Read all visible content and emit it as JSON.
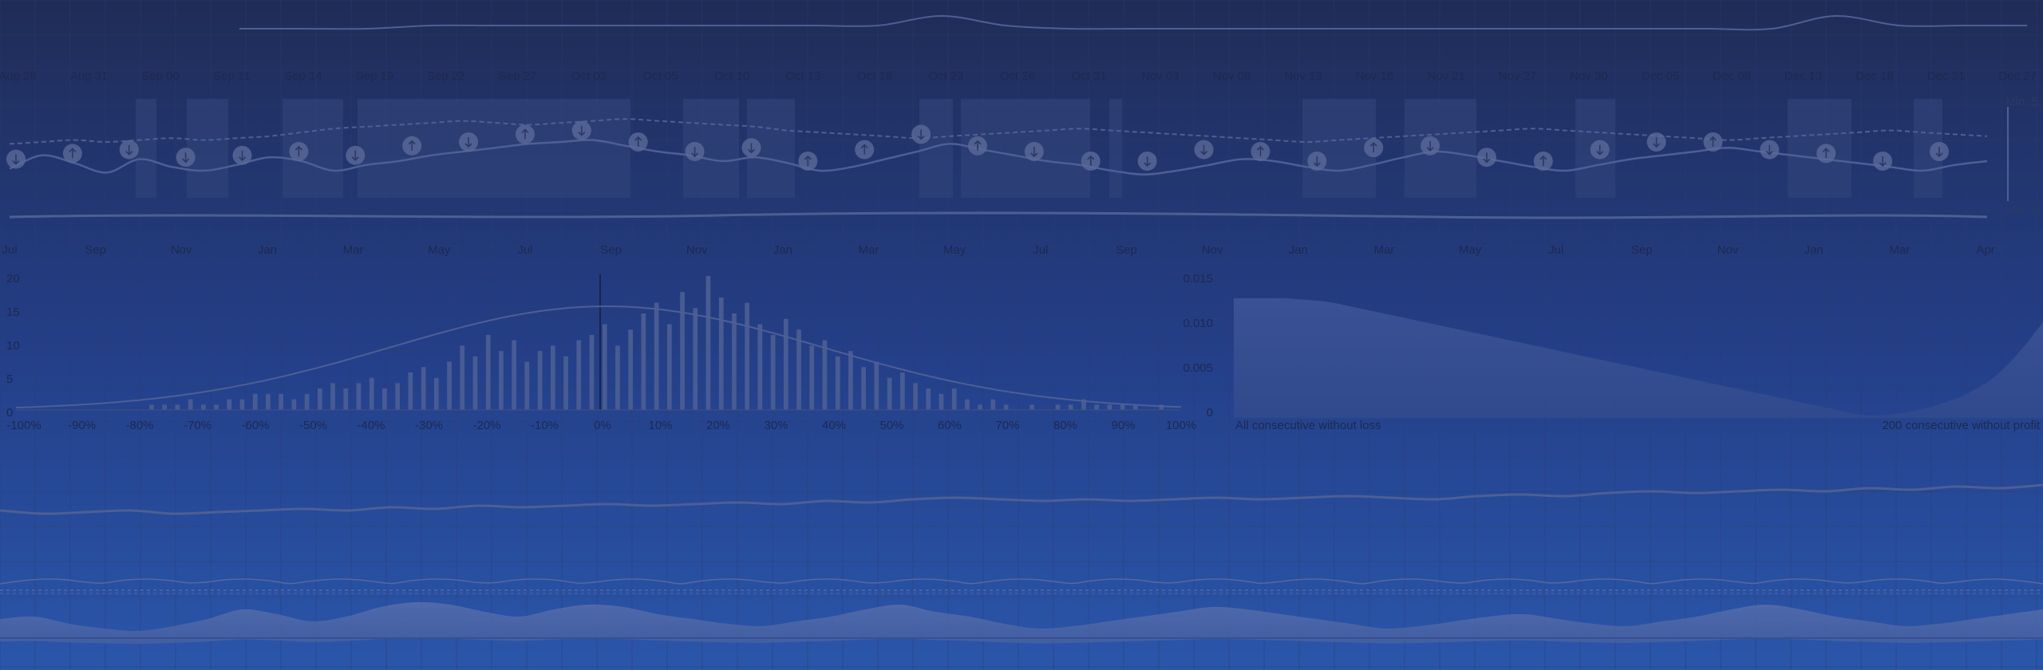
{
  "colors": {
    "bg_top": "#202c57",
    "bg_bottom": "#2a56aa",
    "line": "#4d5f94",
    "fill": "#3c5596",
    "band": "#31437a",
    "marker": "#5a6a99",
    "label": "#1c2950"
  },
  "chart_data": [
    {
      "type": "line",
      "id": "navigator",
      "x": [
        "Aug 28",
        "Aug 31",
        "Sep 06",
        "Sep 11",
        "Sep 14",
        "Sep 19",
        "Sep 22",
        "Sep 27",
        "Oct 02",
        "Oct 05",
        "Oct 10",
        "Oct 13",
        "Oct 18",
        "Oct 23",
        "Oct 26",
        "Oct 31",
        "Nov 03",
        "Nov 08",
        "Nov 13",
        "Nov 16",
        "Nov 21",
        "Nov 27",
        "Nov 30",
        "Dec 05",
        "Dec 08",
        "Dec 13",
        "Dec 18",
        "Dec 21",
        "Dec 27"
      ],
      "x_tick_labels": [
        "Aug 28",
        "Aug 31",
        "Sep 06",
        "Sep 11",
        "Sep 14",
        "Sep 19",
        "Sep 22",
        "Sep 27",
        "Oct 02",
        "Oct 05",
        "Oct 10",
        "Oct 13",
        "Oct 18",
        "Oct 23",
        "Oct 26",
        "Oct 31",
        "Nov 03",
        "Nov 08",
        "Nov 13",
        "Nov 16",
        "Nov 21",
        "Nov 27",
        "Nov 30",
        "Dec 05",
        "Dec 08",
        "Dec 13",
        "Dec 18",
        "Dec 21",
        "Dec 27"
      ],
      "values": [
        0,
        0,
        0,
        1,
        1,
        1,
        1,
        1,
        1,
        1,
        1,
        4,
        1,
        0,
        0,
        0,
        0,
        0,
        0,
        0,
        0,
        0,
        0,
        0,
        0,
        4,
        1,
        1,
        1
      ]
    },
    {
      "type": "line",
      "id": "flags-timeline",
      "x_tick_labels": [
        "Jul",
        "Sep",
        "Nov",
        "Jan",
        "Mar",
        "May",
        "Jul",
        "Sep",
        "Nov",
        "Jan",
        "Mar",
        "May",
        "Jul",
        "Sep",
        "Nov",
        "Jan",
        "Mar",
        "May",
        "Jul",
        "Sep",
        "Nov",
        "Jan",
        "Mar",
        "Apr"
      ],
      "y_tick_labels": [
        "Min. 5",
        "Min. 5"
      ],
      "series_main": [
        32,
        46,
        38,
        28,
        42,
        34,
        30,
        36,
        44,
        40,
        30,
        36,
        40,
        46,
        50,
        54,
        58,
        60,
        62,
        56,
        50,
        46,
        40,
        44,
        38,
        30,
        34,
        42,
        50,
        58,
        52,
        46,
        40,
        36,
        30,
        26,
        30,
        36,
        42,
        40,
        34,
        30,
        36,
        44,
        50,
        46,
        40,
        34,
        30,
        36,
        42,
        46,
        50,
        54,
        50,
        46,
        42,
        38,
        34,
        30,
        36,
        40
      ],
      "series_dashed": [
        58,
        60,
        62,
        60,
        62,
        64,
        62,
        64,
        66,
        70,
        74,
        76,
        78,
        80,
        82,
        80,
        78,
        80,
        82,
        84,
        82,
        80,
        78,
        76,
        72,
        70,
        68,
        66,
        64,
        66,
        68,
        70,
        72,
        74,
        72,
        70,
        68,
        66,
        64,
        62,
        60,
        62,
        64,
        66,
        68,
        70,
        72,
        74,
        72,
        70,
        68,
        66,
        64,
        62,
        64,
        66,
        68,
        70,
        72,
        70,
        68,
        66
      ],
      "flags": [
        "down",
        "up",
        "down",
        "down",
        "down",
        "up",
        "down",
        "up",
        "down",
        "up",
        "down",
        "up",
        "down",
        "down",
        "up",
        "up",
        "down",
        "up",
        "down",
        "up",
        "down",
        "down",
        "up",
        "down",
        "up",
        "down",
        "down",
        "up",
        "down",
        "down",
        "up",
        "down",
        "up",
        "down",
        "down"
      ]
    },
    {
      "type": "bar",
      "id": "distribution-histogram",
      "x_tick_labels": [
        "-100%",
        "-95%",
        "-90%",
        "-85%",
        "-80%",
        "-75%",
        "-70%",
        "-65%",
        "-60%",
        "-55%",
        "-50%",
        "-45%",
        "-40%",
        "-35%",
        "-30%",
        "-25%",
        "-20%",
        "-15%",
        "-10%",
        "-5%",
        "0%",
        "5%",
        "10%",
        "15%",
        "20%",
        "25%",
        "30%",
        "35%",
        "40%",
        "45%",
        "50%",
        "55%",
        "60%",
        "65%",
        "70%",
        "75%",
        "80%",
        "85%",
        "90%",
        "95%",
        "100%"
      ],
      "x_tick_labels_visible": [
        "-100%",
        "-90%",
        "-80%",
        "-70%",
        "-60%",
        "-50%",
        "-40%",
        "-30%",
        "-20%",
        "-10%",
        "0%",
        "10%",
        "20%",
        "30%",
        "40%",
        "50%",
        "60%",
        "70%",
        "80%",
        "90%",
        "100%"
      ],
      "y_tick_labels_left": [
        "20",
        "15",
        "10",
        "5",
        "0"
      ],
      "y_tick_labels_right": [
        "0.015",
        "0.010",
        "0.005",
        "0"
      ],
      "values": [
        0,
        0,
        0,
        0,
        0,
        0,
        0,
        0,
        0,
        0,
        1,
        1,
        1,
        2,
        1,
        1,
        2,
        2,
        3,
        3,
        3,
        2,
        3,
        4,
        5,
        4,
        5,
        6,
        4,
        5,
        7,
        8,
        6,
        9,
        12,
        10,
        14,
        11,
        13,
        9,
        11,
        12,
        10,
        13,
        14,
        16,
        12,
        15,
        18,
        20,
        16,
        22,
        19,
        25,
        21,
        18,
        20,
        16,
        14,
        17,
        15,
        12,
        13,
        10,
        11,
        8,
        9,
        6,
        7,
        5,
        4,
        3,
        4,
        2,
        1,
        2,
        1,
        0,
        1,
        0,
        1,
        1,
        2,
        1,
        1,
        1,
        1,
        0,
        1,
        0
      ]
    },
    {
      "type": "area",
      "id": "monte-carlo-area",
      "x_tick_labels": [
        "All consecutive without loss",
        "200 consecutive without profit"
      ],
      "values": [
        100,
        100,
        100,
        100,
        99,
        98,
        96,
        93,
        90,
        87,
        84,
        81,
        78,
        75,
        72,
        69,
        66,
        63,
        60,
        57,
        54,
        51,
        48,
        45,
        42,
        39,
        36,
        33,
        30,
        27,
        24,
        21,
        18,
        15,
        12,
        9,
        6,
        3,
        2,
        3,
        5,
        8,
        12,
        17,
        24,
        33,
        46,
        62,
        80
      ]
    },
    {
      "type": "line",
      "id": "equity-curve",
      "values": [
        40,
        38,
        39,
        40,
        38,
        39,
        40,
        41,
        40,
        42,
        41,
        43,
        42,
        43,
        44,
        43,
        44,
        45,
        44,
        46,
        45,
        47,
        48,
        47,
        46,
        47,
        46,
        47,
        48,
        47,
        48,
        49,
        48,
        47,
        49,
        50,
        49,
        51,
        52,
        51,
        52,
        53,
        52,
        54,
        53,
        55,
        54,
        56
      ]
    },
    {
      "type": "area",
      "id": "drawdown-area",
      "values": [
        8,
        9,
        6,
        4,
        3,
        5,
        8,
        12,
        10,
        7,
        9,
        13,
        15,
        14,
        11,
        9,
        12,
        14,
        13,
        10,
        8,
        6,
        5,
        7,
        9,
        12,
        14,
        11,
        9,
        6,
        4,
        5,
        7,
        9,
        11,
        13,
        12,
        10,
        8,
        6,
        4,
        5,
        7,
        9,
        10,
        8,
        6,
        5,
        7,
        9,
        12,
        14,
        12,
        9,
        7,
        5,
        6,
        8,
        10,
        12
      ]
    }
  ]
}
